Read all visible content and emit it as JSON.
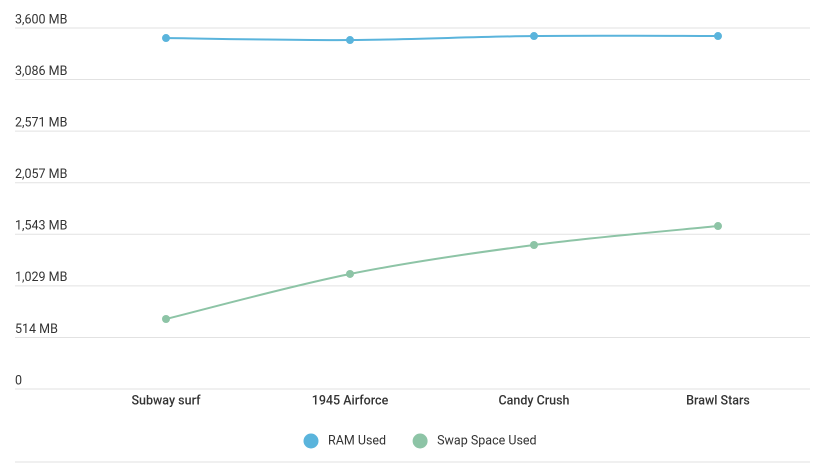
{
  "chart_data": {
    "type": "line",
    "categories": [
      "Subway surf",
      "1945 Airforce",
      "Candy Crush",
      "Brawl Stars"
    ],
    "series": [
      {
        "name": "RAM Used",
        "color": "#5ab4dc",
        "values": [
          3500,
          3480,
          3520,
          3520
        ]
      },
      {
        "name": "Swap Space Used",
        "color": "#8dc4a6",
        "values": [
          698,
          1147,
          1436,
          1625
        ]
      }
    ],
    "ylim": [
      0,
      3600
    ],
    "yticks": [
      0,
      {
        "value": 514,
        "label": "514 MB"
      },
      {
        "value": 1029,
        "label": "1,029 MB"
      },
      {
        "value": 1543,
        "label": "1,543 MB"
      },
      {
        "value": 2057,
        "label": "2,057 MB"
      },
      {
        "value": 2571,
        "label": "2,571 MB"
      },
      {
        "value": 3086,
        "label": "3,086 MB"
      },
      {
        "value": 3600,
        "label": "3,600 MB"
      }
    ],
    "grid": true,
    "smooth": true,
    "legend": "bottom"
  }
}
